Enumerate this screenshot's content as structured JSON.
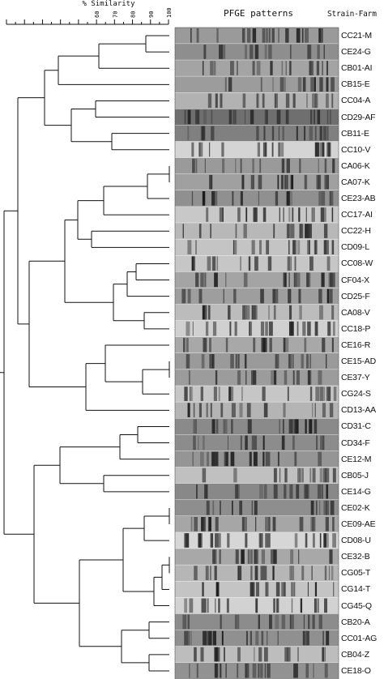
{
  "header": {
    "scale_title": "% Similarity",
    "pfge_title": "PFGE patterns",
    "strain_title": "Strain-Farm"
  },
  "scale": {
    "ticks": [
      "60",
      "70",
      "80",
      "90",
      "100"
    ],
    "min": 10,
    "max": 100
  },
  "strains": [
    "CC21-M",
    "CE24-G",
    "CB01-AI",
    "CB15-E",
    "CC04-A",
    "CD29-AF",
    "CB11-E",
    "CC10-V",
    "CA06-K",
    "CA07-K",
    "CE23-AB",
    "CC17-AI",
    "CC22-H",
    "CD09-L",
    "CC08-W",
    "CF04-X",
    "CD25-F",
    "CA08-V",
    "CC18-P",
    "CE16-R",
    "CE15-AD",
    "CE37-Y",
    "CG24-S",
    "CD13-AA",
    "CD31-C",
    "CD34-F",
    "CE12-M",
    "CB05-J",
    "CE14-G",
    "CE02-K",
    "CE09-AE",
    "CD08-U",
    "CE32-B",
    "CG05-T",
    "CG14-T",
    "CG45-Q",
    "CB20-A",
    "CC01-AG",
    "CB04-Z",
    "CE18-O"
  ],
  "lane_shades": [
    "#9a9a9a",
    "#8e8e8e",
    "#a4a4a4",
    "#9c9c9c",
    "#b2b2b2",
    "#6f6f6f",
    "#808080",
    "#d4d4d4",
    "#9a9a9a",
    "#a0a0a0",
    "#909090",
    "#c8c8c8",
    "#b8b8b8",
    "#c4c4c4",
    "#c6c6c6",
    "#a4a4a4",
    "#9e9e9e",
    "#bcbcbc",
    "#d0d0d0",
    "#a8a8a8",
    "#9a9a9a",
    "#9c9c9c",
    "#c6c6c6",
    "#b4b4b4",
    "#8a8a8a",
    "#8c8c8c",
    "#959595",
    "#c0c0c0",
    "#888888",
    "#8e8e8e",
    "#a6a6a6",
    "#d6d6d6",
    "#a8a8a8",
    "#b6b6b6",
    "#c4c4c4",
    "#d2d2d2",
    "#8c8c8c",
    "#909090",
    "#bdbdbd",
    "#929292"
  ]
}
